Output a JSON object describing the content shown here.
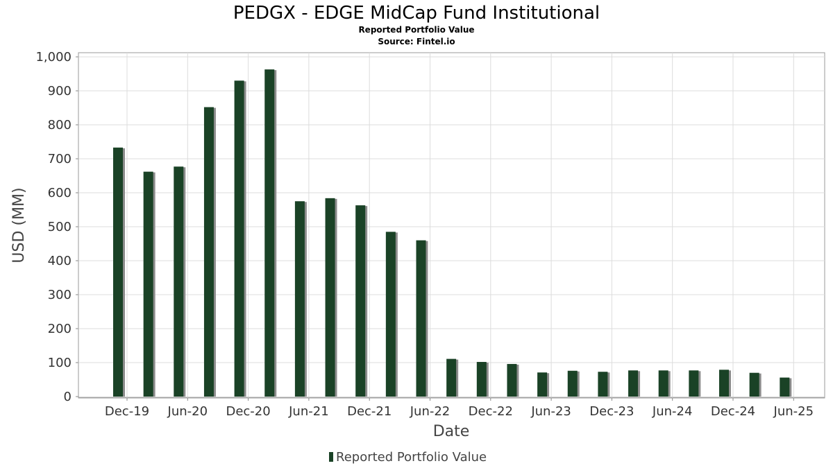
{
  "chart_data": {
    "type": "bar",
    "title": "PEDGX - EDGE MidCap Fund Institutional",
    "subtitle": "Reported Portfolio Value",
    "source": "Source: Fintel.io",
    "xlabel": "Date",
    "ylabel": "USD (MM)",
    "ylim": [
      0,
      1000
    ],
    "yticks": [
      0,
      100,
      200,
      300,
      400,
      500,
      600,
      700,
      800,
      900,
      1000
    ],
    "ytick_labels": [
      "0",
      "100",
      "200",
      "300",
      "400",
      "500",
      "600",
      "700",
      "800",
      "900",
      "1,000"
    ],
    "xtick_labels": [
      "Dec-19",
      "Jun-20",
      "Dec-20",
      "Jun-21",
      "Dec-21",
      "Jun-22",
      "Dec-22",
      "Jun-23",
      "Dec-23",
      "Jun-24",
      "Dec-24",
      "Jun-25"
    ],
    "grid": true,
    "legend_position": "bottom",
    "series": [
      {
        "name": "Reported Portfolio Value",
        "color": "#1a4226",
        "dates": [
          "2019-12",
          "2020-03",
          "2020-06",
          "2020-09",
          "2020-12",
          "2021-03",
          "2021-06",
          "2021-09",
          "2021-12",
          "2022-03",
          "2022-06",
          "2022-09",
          "2022-12",
          "2023-03",
          "2023-06",
          "2023-09",
          "2023-12",
          "2024-03",
          "2024-06",
          "2024-09",
          "2024-12",
          "2025-03",
          "2025-06"
        ],
        "values": [
          733,
          662,
          677,
          852,
          930,
          963,
          575,
          584,
          563,
          485,
          460,
          111,
          102,
          96,
          71,
          76,
          73,
          77,
          77,
          77,
          79,
          70,
          56
        ]
      }
    ]
  }
}
